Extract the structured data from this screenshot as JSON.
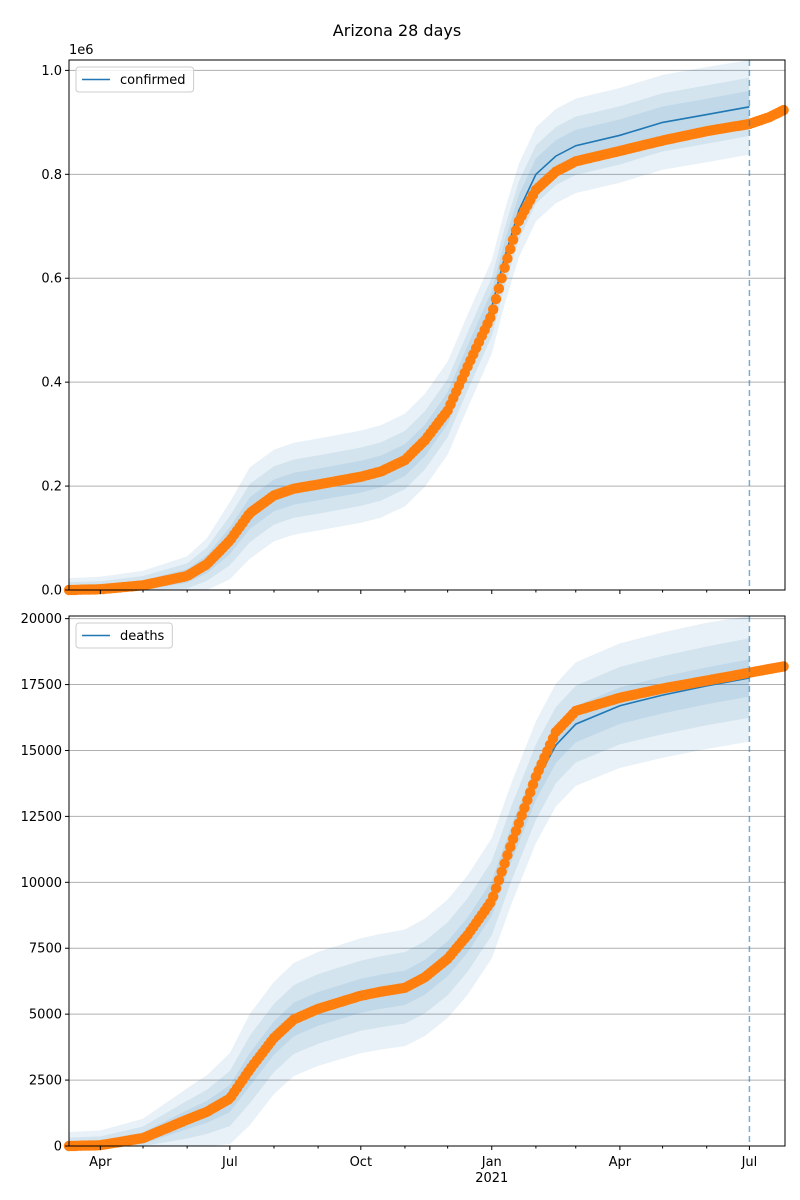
{
  "figure": {
    "title": "Arizona 28 days",
    "colors": {
      "model": "#1f77b4",
      "observed": "#ff7f0e",
      "band": "#1f77b4",
      "grid": "#b0b0b0",
      "vline": "#1f77b4"
    }
  },
  "chart_data": [
    {
      "type": "line",
      "name": "confirmed",
      "legend": "confirmed",
      "legend_position": "top-left",
      "x_type": "date",
      "xlim": [
        "2020-03-10",
        "2021-07-26"
      ],
      "ylim": [
        0,
        1020000
      ],
      "y_offset_text": "1e6",
      "y_ticks": [
        0,
        200000,
        400000,
        600000,
        800000,
        1000000
      ],
      "y_tick_labels": [
        "0.0",
        "0.2",
        "0.4",
        "0.6",
        "0.8",
        "1.0"
      ],
      "x_tick_labels": [],
      "grid": "y",
      "forecast_start": "2021-07-01",
      "model_series": [
        [
          "2020-03-10",
          0
        ],
        [
          "2020-04-01",
          1500
        ],
        [
          "2020-05-01",
          9000
        ],
        [
          "2020-06-01",
          27000
        ],
        [
          "2020-06-15",
          50000
        ],
        [
          "2020-07-01",
          95000
        ],
        [
          "2020-07-15",
          148000
        ],
        [
          "2020-08-01",
          182000
        ],
        [
          "2020-08-15",
          195000
        ],
        [
          "2020-09-01",
          203000
        ],
        [
          "2020-10-01",
          218000
        ],
        [
          "2020-10-15",
          228000
        ],
        [
          "2020-11-01",
          250000
        ],
        [
          "2020-11-15",
          288000
        ],
        [
          "2020-12-01",
          350000
        ],
        [
          "2020-12-15",
          440000
        ],
        [
          "2021-01-01",
          545000
        ],
        [
          "2021-01-10",
          640000
        ],
        [
          "2021-01-20",
          730000
        ],
        [
          "2021-02-01",
          800000
        ],
        [
          "2021-02-15",
          835000
        ],
        [
          "2021-03-01",
          855000
        ],
        [
          "2021-04-01",
          875000
        ],
        [
          "2021-05-01",
          900000
        ],
        [
          "2021-06-01",
          915000
        ],
        [
          "2021-07-01",
          930000
        ]
      ],
      "observed_series": [
        [
          "2020-03-10",
          0
        ],
        [
          "2020-04-01",
          1500
        ],
        [
          "2020-05-01",
          9000
        ],
        [
          "2020-06-01",
          27000
        ],
        [
          "2020-06-15",
          50000
        ],
        [
          "2020-07-01",
          95000
        ],
        [
          "2020-07-15",
          148000
        ],
        [
          "2020-08-01",
          182000
        ],
        [
          "2020-08-15",
          195000
        ],
        [
          "2020-09-01",
          203000
        ],
        [
          "2020-10-01",
          218000
        ],
        [
          "2020-10-15",
          228000
        ],
        [
          "2020-11-01",
          250000
        ],
        [
          "2020-11-15",
          288000
        ],
        [
          "2020-12-01",
          345000
        ],
        [
          "2020-12-15",
          430000
        ],
        [
          "2021-01-01",
          530000
        ],
        [
          "2021-01-10",
          620000
        ],
        [
          "2021-01-20",
          710000
        ],
        [
          "2021-02-01",
          770000
        ],
        [
          "2021-02-15",
          805000
        ],
        [
          "2021-03-01",
          825000
        ],
        [
          "2021-04-01",
          845000
        ],
        [
          "2021-05-01",
          865000
        ],
        [
          "2021-06-01",
          883000
        ],
        [
          "2021-07-01",
          897000
        ],
        [
          "2021-07-15",
          910000
        ],
        [
          "2021-07-26",
          925000
        ]
      ],
      "band_widths": [
        0.03,
        0.055,
        0.085
      ],
      "band_widths_end": [
        0.03,
        0.055,
        0.09
      ]
    },
    {
      "type": "line",
      "name": "deaths",
      "legend": "deaths",
      "legend_position": "top-left",
      "x_type": "date",
      "xlim": [
        "2020-03-10",
        "2021-07-26"
      ],
      "ylim": [
        0,
        20100
      ],
      "y_ticks": [
        0,
        2500,
        5000,
        7500,
        10000,
        12500,
        15000,
        17500,
        20000
      ],
      "y_tick_labels": [
        "0",
        "2500",
        "5000",
        "7500",
        "10000",
        "12500",
        "15000",
        "17500",
        "20000"
      ],
      "x_ticks": [
        "2020-04-01",
        "2020-07-01",
        "2020-10-01",
        "2021-01-01",
        "2021-04-01",
        "2021-07-01"
      ],
      "x_tick_labels": [
        "Apr",
        "Jul",
        "Oct",
        "Jan",
        "Apr",
        "Jul"
      ],
      "x_year_label": "2021",
      "grid": "y",
      "forecast_start": "2021-07-01",
      "model_series": [
        [
          "2020-03-10",
          0
        ],
        [
          "2020-04-01",
          30
        ],
        [
          "2020-05-01",
          300
        ],
        [
          "2020-06-01",
          1000
        ],
        [
          "2020-06-15",
          1300
        ],
        [
          "2020-07-01",
          1800
        ],
        [
          "2020-07-15",
          2900
        ],
        [
          "2020-08-01",
          4100
        ],
        [
          "2020-08-15",
          4800
        ],
        [
          "2020-09-01",
          5200
        ],
        [
          "2020-10-01",
          5700
        ],
        [
          "2020-10-15",
          5850
        ],
        [
          "2020-11-01",
          6000
        ],
        [
          "2020-11-15",
          6400
        ],
        [
          "2020-12-01",
          7100
        ],
        [
          "2020-12-15",
          8000
        ],
        [
          "2021-01-01",
          9400
        ],
        [
          "2021-01-15",
          11500
        ],
        [
          "2021-02-01",
          13800
        ],
        [
          "2021-02-15",
          15200
        ],
        [
          "2021-03-01",
          16000
        ],
        [
          "2021-04-01",
          16700
        ],
        [
          "2021-05-01",
          17100
        ],
        [
          "2021-06-01",
          17450
        ],
        [
          "2021-07-01",
          17750
        ]
      ],
      "observed_series": [
        [
          "2020-03-10",
          0
        ],
        [
          "2020-04-01",
          30
        ],
        [
          "2020-05-01",
          300
        ],
        [
          "2020-06-01",
          1000
        ],
        [
          "2020-06-15",
          1300
        ],
        [
          "2020-07-01",
          1800
        ],
        [
          "2020-07-15",
          2900
        ],
        [
          "2020-08-01",
          4100
        ],
        [
          "2020-08-15",
          4800
        ],
        [
          "2020-09-01",
          5200
        ],
        [
          "2020-10-01",
          5700
        ],
        [
          "2020-10-15",
          5850
        ],
        [
          "2020-11-01",
          6000
        ],
        [
          "2020-11-15",
          6400
        ],
        [
          "2020-12-01",
          7100
        ],
        [
          "2020-12-15",
          8000
        ],
        [
          "2021-01-01",
          9300
        ],
        [
          "2021-01-15",
          11500
        ],
        [
          "2021-02-01",
          14000
        ],
        [
          "2021-02-15",
          15700
        ],
        [
          "2021-03-01",
          16500
        ],
        [
          "2021-04-01",
          17000
        ],
        [
          "2021-05-01",
          17350
        ],
        [
          "2021-06-01",
          17650
        ],
        [
          "2021-07-01",
          17950
        ],
        [
          "2021-07-26",
          18200
        ]
      ],
      "band_widths": [
        0.03,
        0.06,
        0.1
      ],
      "band_widths_end": [
        0.035,
        0.075,
        0.12
      ]
    }
  ]
}
